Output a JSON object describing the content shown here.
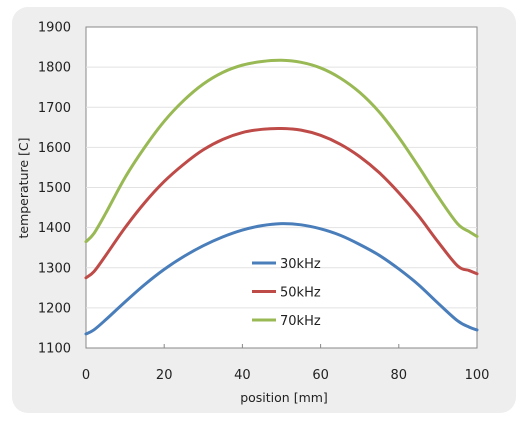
{
  "chart_data": {
    "type": "line",
    "xlabel": "position [mm]",
    "ylabel": "temperature [C]",
    "xlim": [
      0,
      100
    ],
    "ylim": [
      1100,
      1900
    ],
    "xticks": [
      0,
      20,
      40,
      60,
      80,
      100
    ],
    "yticks": [
      1100,
      1200,
      1300,
      1400,
      1500,
      1600,
      1700,
      1800,
      1900
    ],
    "grid": true,
    "legend_position": "center",
    "series": [
      {
        "name": "30kHz",
        "color": "#4a7ebb",
        "x": [
          0,
          2,
          5,
          10,
          15,
          20,
          25,
          30,
          35,
          40,
          45,
          50,
          55,
          60,
          65,
          70,
          75,
          80,
          85,
          90,
          95,
          98,
          100
        ],
        "y": [
          1135,
          1145,
          1170,
          1215,
          1258,
          1296,
          1328,
          1355,
          1377,
          1394,
          1405,
          1410,
          1407,
          1397,
          1381,
          1358,
          1331,
          1297,
          1258,
          1212,
          1168,
          1152,
          1145
        ]
      },
      {
        "name": "50kHz",
        "color": "#be4b48",
        "x": [
          0,
          2,
          5,
          10,
          15,
          20,
          25,
          30,
          35,
          40,
          45,
          50,
          55,
          60,
          65,
          70,
          75,
          80,
          85,
          90,
          95,
          98,
          100
        ],
        "y": [
          1275,
          1290,
          1330,
          1400,
          1462,
          1515,
          1558,
          1594,
          1620,
          1637,
          1645,
          1647,
          1643,
          1630,
          1608,
          1577,
          1537,
          1487,
          1430,
          1365,
          1305,
          1293,
          1285
        ]
      },
      {
        "name": "70kHz",
        "color": "#98b954",
        "x": [
          0,
          2,
          5,
          10,
          15,
          20,
          25,
          30,
          35,
          40,
          45,
          50,
          55,
          60,
          65,
          70,
          75,
          80,
          85,
          90,
          95,
          98,
          100
        ],
        "y": [
          1365,
          1385,
          1435,
          1525,
          1600,
          1665,
          1717,
          1758,
          1787,
          1805,
          1814,
          1817,
          1812,
          1798,
          1773,
          1737,
          1688,
          1625,
          1553,
          1478,
          1410,
          1390,
          1378
        ]
      }
    ]
  }
}
